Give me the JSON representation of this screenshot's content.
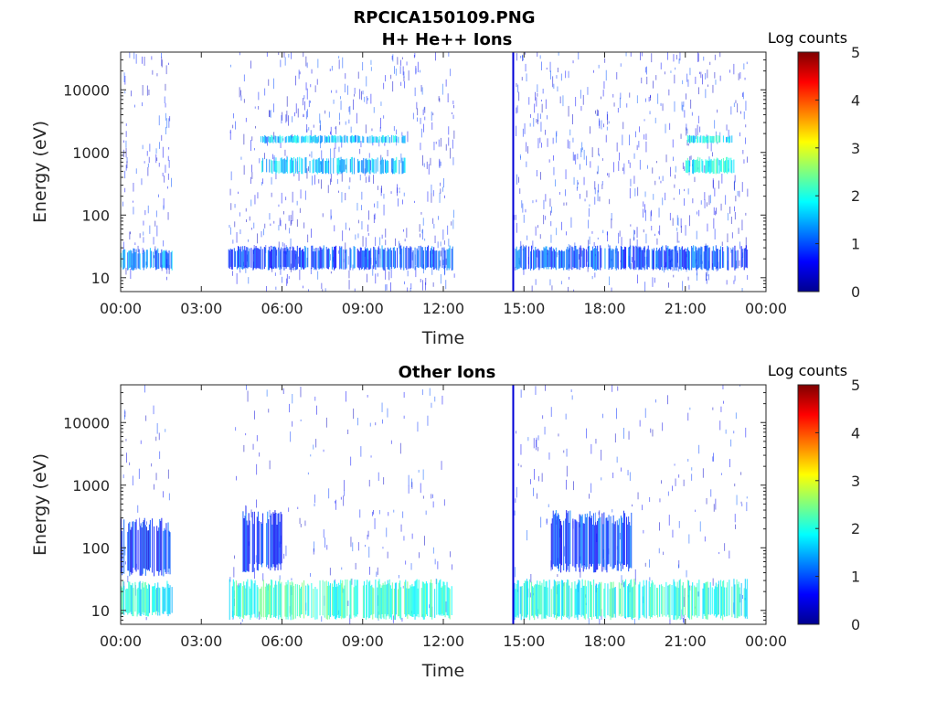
{
  "figure_title": "RPCICA150109.PNG",
  "colormap": [
    "#00008f",
    "#0000ff",
    "#007fff",
    "#00ffff",
    "#7fff7f",
    "#ffff00",
    "#ff7f00",
    "#ff0000",
    "#7f0000"
  ],
  "chart_data": [
    {
      "type": "heatmap",
      "title": "H+ He++ Ions",
      "xlabel": "Time",
      "ylabel": "Energy (eV)",
      "x_scale": "time",
      "xlim": [
        "00:00",
        "24:00"
      ],
      "x_ticks": [
        "00:00",
        "03:00",
        "06:00",
        "09:00",
        "12:00",
        "15:00",
        "18:00",
        "21:00",
        "00:00"
      ],
      "y_scale": "log",
      "ylim": [
        6,
        40000
      ],
      "y_ticks": [
        10,
        100,
        1000,
        10000
      ],
      "y_tick_labels": [
        "10",
        "100",
        "1000",
        "10000"
      ],
      "colorbar": {
        "label": "Log counts",
        "range": [
          0,
          5
        ],
        "ticks": [
          "0",
          "1",
          "2",
          "3",
          "4",
          "5"
        ]
      },
      "data_gaps_hours": [
        [
          1.9,
          4.0
        ],
        [
          12.4,
          14.6
        ],
        [
          23.3,
          24.0
        ]
      ],
      "spike_hour": 14.6,
      "bands": [
        {
          "time_range_hours": [
            0.0,
            1.9
          ],
          "energy_range_ev": [
            13,
            30
          ],
          "log_counts": 1.3
        },
        {
          "time_range_hours": [
            4.0,
            12.4
          ],
          "energy_range_ev": [
            13,
            33
          ],
          "log_counts": 1.0
        },
        {
          "time_range_hours": [
            14.6,
            23.3
          ],
          "energy_range_ev": [
            13,
            33
          ],
          "log_counts": 1.0
        },
        {
          "time_range_hours": [
            5.2,
            10.6
          ],
          "energy_range_ev": [
            1400,
            1900
          ],
          "log_counts": 1.6
        },
        {
          "time_range_hours": [
            5.2,
            10.6
          ],
          "energy_range_ev": [
            450,
            850
          ],
          "log_counts": 1.6
        },
        {
          "time_range_hours": [
            21.0,
            22.8
          ],
          "energy_range_ev": [
            1400,
            1900
          ],
          "log_counts": 1.8
        },
        {
          "time_range_hours": [
            21.0,
            22.8
          ],
          "energy_range_ev": [
            450,
            850
          ],
          "log_counts": 1.9
        }
      ]
    },
    {
      "type": "heatmap",
      "title": "Other Ions",
      "xlabel": "Time",
      "ylabel": "Energy (eV)",
      "x_scale": "time",
      "xlim": [
        "00:00",
        "24:00"
      ],
      "x_ticks": [
        "00:00",
        "03:00",
        "06:00",
        "09:00",
        "12:00",
        "15:00",
        "18:00",
        "21:00",
        "00:00"
      ],
      "y_scale": "log",
      "ylim": [
        6,
        40000
      ],
      "y_ticks": [
        10,
        100,
        1000,
        10000
      ],
      "y_tick_labels": [
        "10",
        "100",
        "1000",
        "10000"
      ],
      "colorbar": {
        "label": "Log counts",
        "range": [
          0,
          5
        ],
        "ticks": [
          "0",
          "1",
          "2",
          "3",
          "4",
          "5"
        ]
      },
      "data_gaps_hours": [
        [
          1.9,
          4.0
        ],
        [
          12.4,
          14.6
        ],
        [
          23.3,
          24.0
        ]
      ],
      "spike_hour": 14.6,
      "bands": [
        {
          "time_range_hours": [
            0.0,
            1.9
          ],
          "energy_range_ev": [
            8,
            30
          ],
          "log_counts": 1.9
        },
        {
          "time_range_hours": [
            4.0,
            12.4
          ],
          "energy_range_ev": [
            7,
            32
          ],
          "log_counts": 2.1
        },
        {
          "time_range_hours": [
            14.6,
            23.3
          ],
          "energy_range_ev": [
            7,
            32
          ],
          "log_counts": 2.0
        },
        {
          "time_range_hours": [
            4.5,
            6.0
          ],
          "energy_range_ev": [
            40,
            400
          ],
          "log_counts": 0.9
        },
        {
          "time_range_hours": [
            16.0,
            19.0
          ],
          "energy_range_ev": [
            40,
            400
          ],
          "log_counts": 0.9
        },
        {
          "time_range_hours": [
            0.0,
            1.9
          ],
          "energy_range_ev": [
            35,
            300
          ],
          "log_counts": 0.8
        }
      ]
    }
  ]
}
